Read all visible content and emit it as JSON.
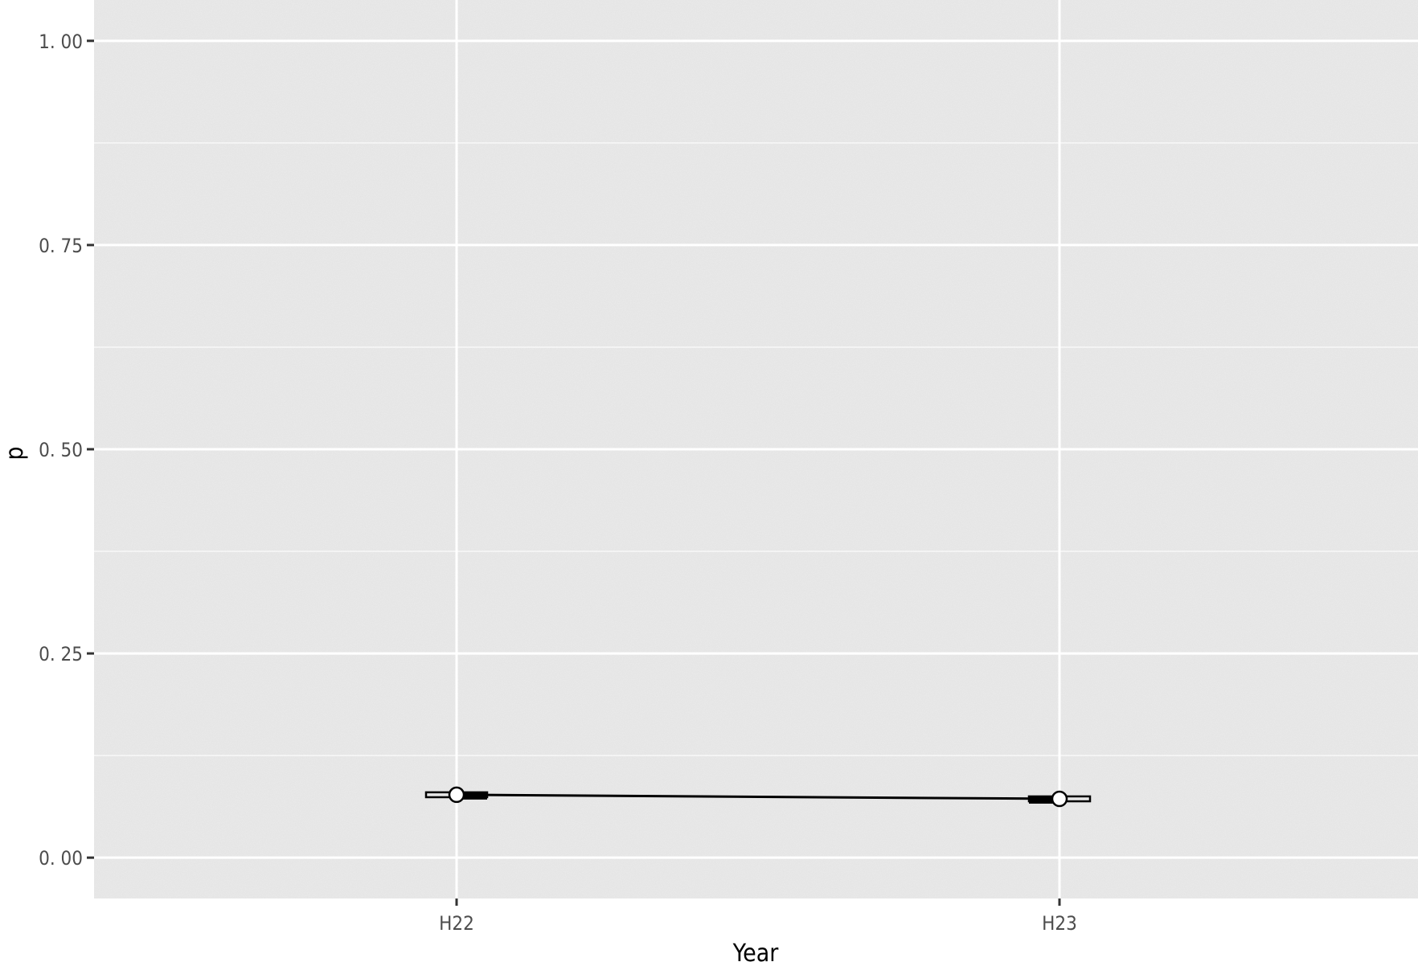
{
  "chart_data": {
    "type": "line",
    "title": "",
    "xlabel": "Year",
    "ylabel": "p",
    "categories": [
      "H22",
      "H23"
    ],
    "ylim": [
      -0.05,
      1.05
    ],
    "y_ticks": [
      0.0,
      0.25,
      0.5,
      0.75,
      1.0
    ],
    "y_tick_labels": [
      "0. 00",
      "0. 25",
      "0. 50",
      "0. 75",
      "1. 00"
    ],
    "grid": true,
    "legend": "none",
    "series": [
      {
        "values": [
          0.077,
          0.072
        ],
        "interval_outer": [
          [
            0.074,
            0.08
          ],
          [
            0.069,
            0.075
          ]
        ],
        "interval_inner": [
          [
            0.075,
            0.079
          ],
          [
            0.07,
            0.074
          ]
        ]
      }
    ],
    "colors": {
      "panel_background": "#ebebeb",
      "grid": "#ffffff",
      "line": "#000000",
      "point_fill": "#ffffff"
    }
  }
}
